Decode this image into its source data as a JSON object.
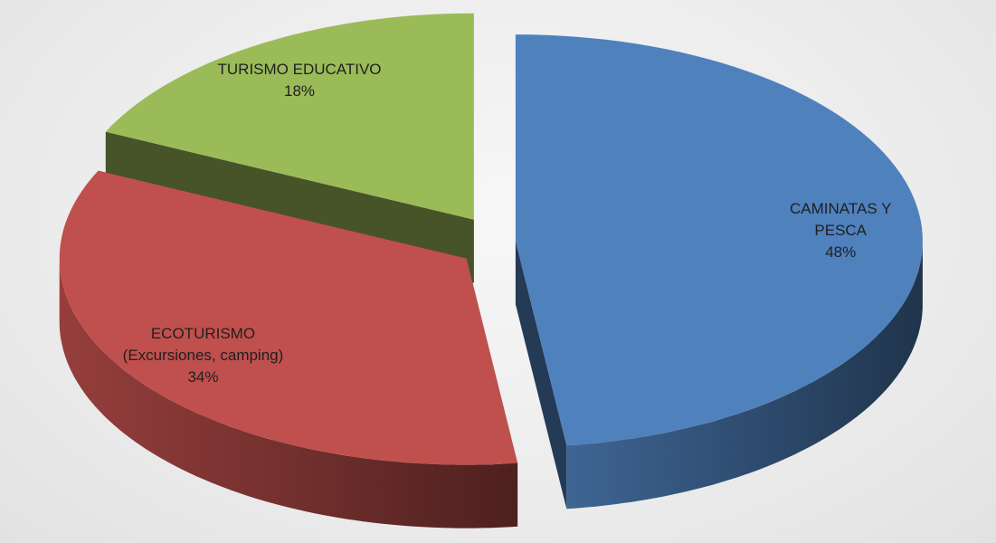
{
  "chart_data": {
    "type": "pie3d",
    "categories": [
      "CAMINATAS Y PESCA",
      "ECOTURISMO\n(Excursiones, camping)",
      "TURISMO EDUCATIVO"
    ],
    "values": [
      48,
      34,
      18
    ],
    "value_labels": [
      "48%",
      "34%",
      "18%"
    ],
    "colors": [
      "#4f81bd",
      "#c0504d",
      "#9bbb59"
    ]
  }
}
